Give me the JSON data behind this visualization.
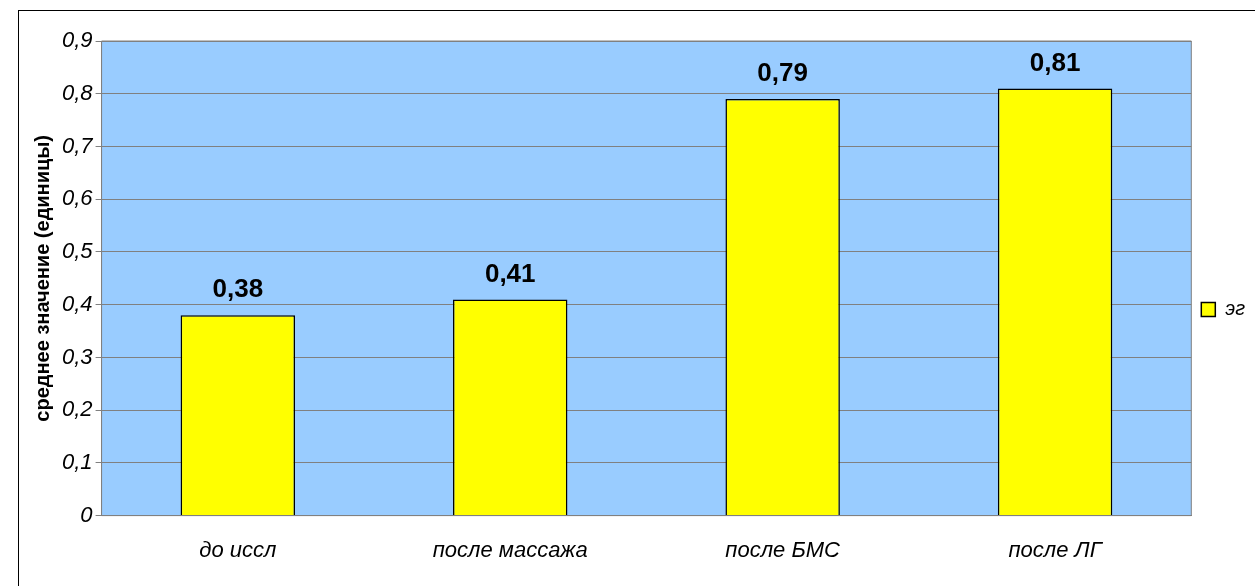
{
  "chart_data": {
    "type": "bar",
    "ylabel": "среднее значение (единицы)",
    "categories": [
      "до иссл",
      "после массажа",
      "после БМС",
      "после ЛГ"
    ],
    "series": [
      {
        "name": "эг",
        "color": "#ffff00",
        "values": [
          0.38,
          0.41,
          0.79,
          0.81
        ],
        "value_labels": [
          "0,38",
          "0,41",
          "0,79",
          "0,81"
        ]
      }
    ],
    "ylim": [
      0,
      0.9
    ],
    "yticks": [
      {
        "value": 0,
        "label": "0"
      },
      {
        "value": 0.1,
        "label": "0,1"
      },
      {
        "value": 0.2,
        "label": "0,2"
      },
      {
        "value": 0.3,
        "label": "0,3"
      },
      {
        "value": 0.4,
        "label": "0,4"
      },
      {
        "value": 0.5,
        "label": "0,5"
      },
      {
        "value": 0.6,
        "label": "0,6"
      },
      {
        "value": 0.7,
        "label": "0,7"
      },
      {
        "value": 0.8,
        "label": "0,8"
      },
      {
        "value": 0.9,
        "label": "0,9"
      }
    ],
    "grid": "y",
    "legend": "right"
  }
}
